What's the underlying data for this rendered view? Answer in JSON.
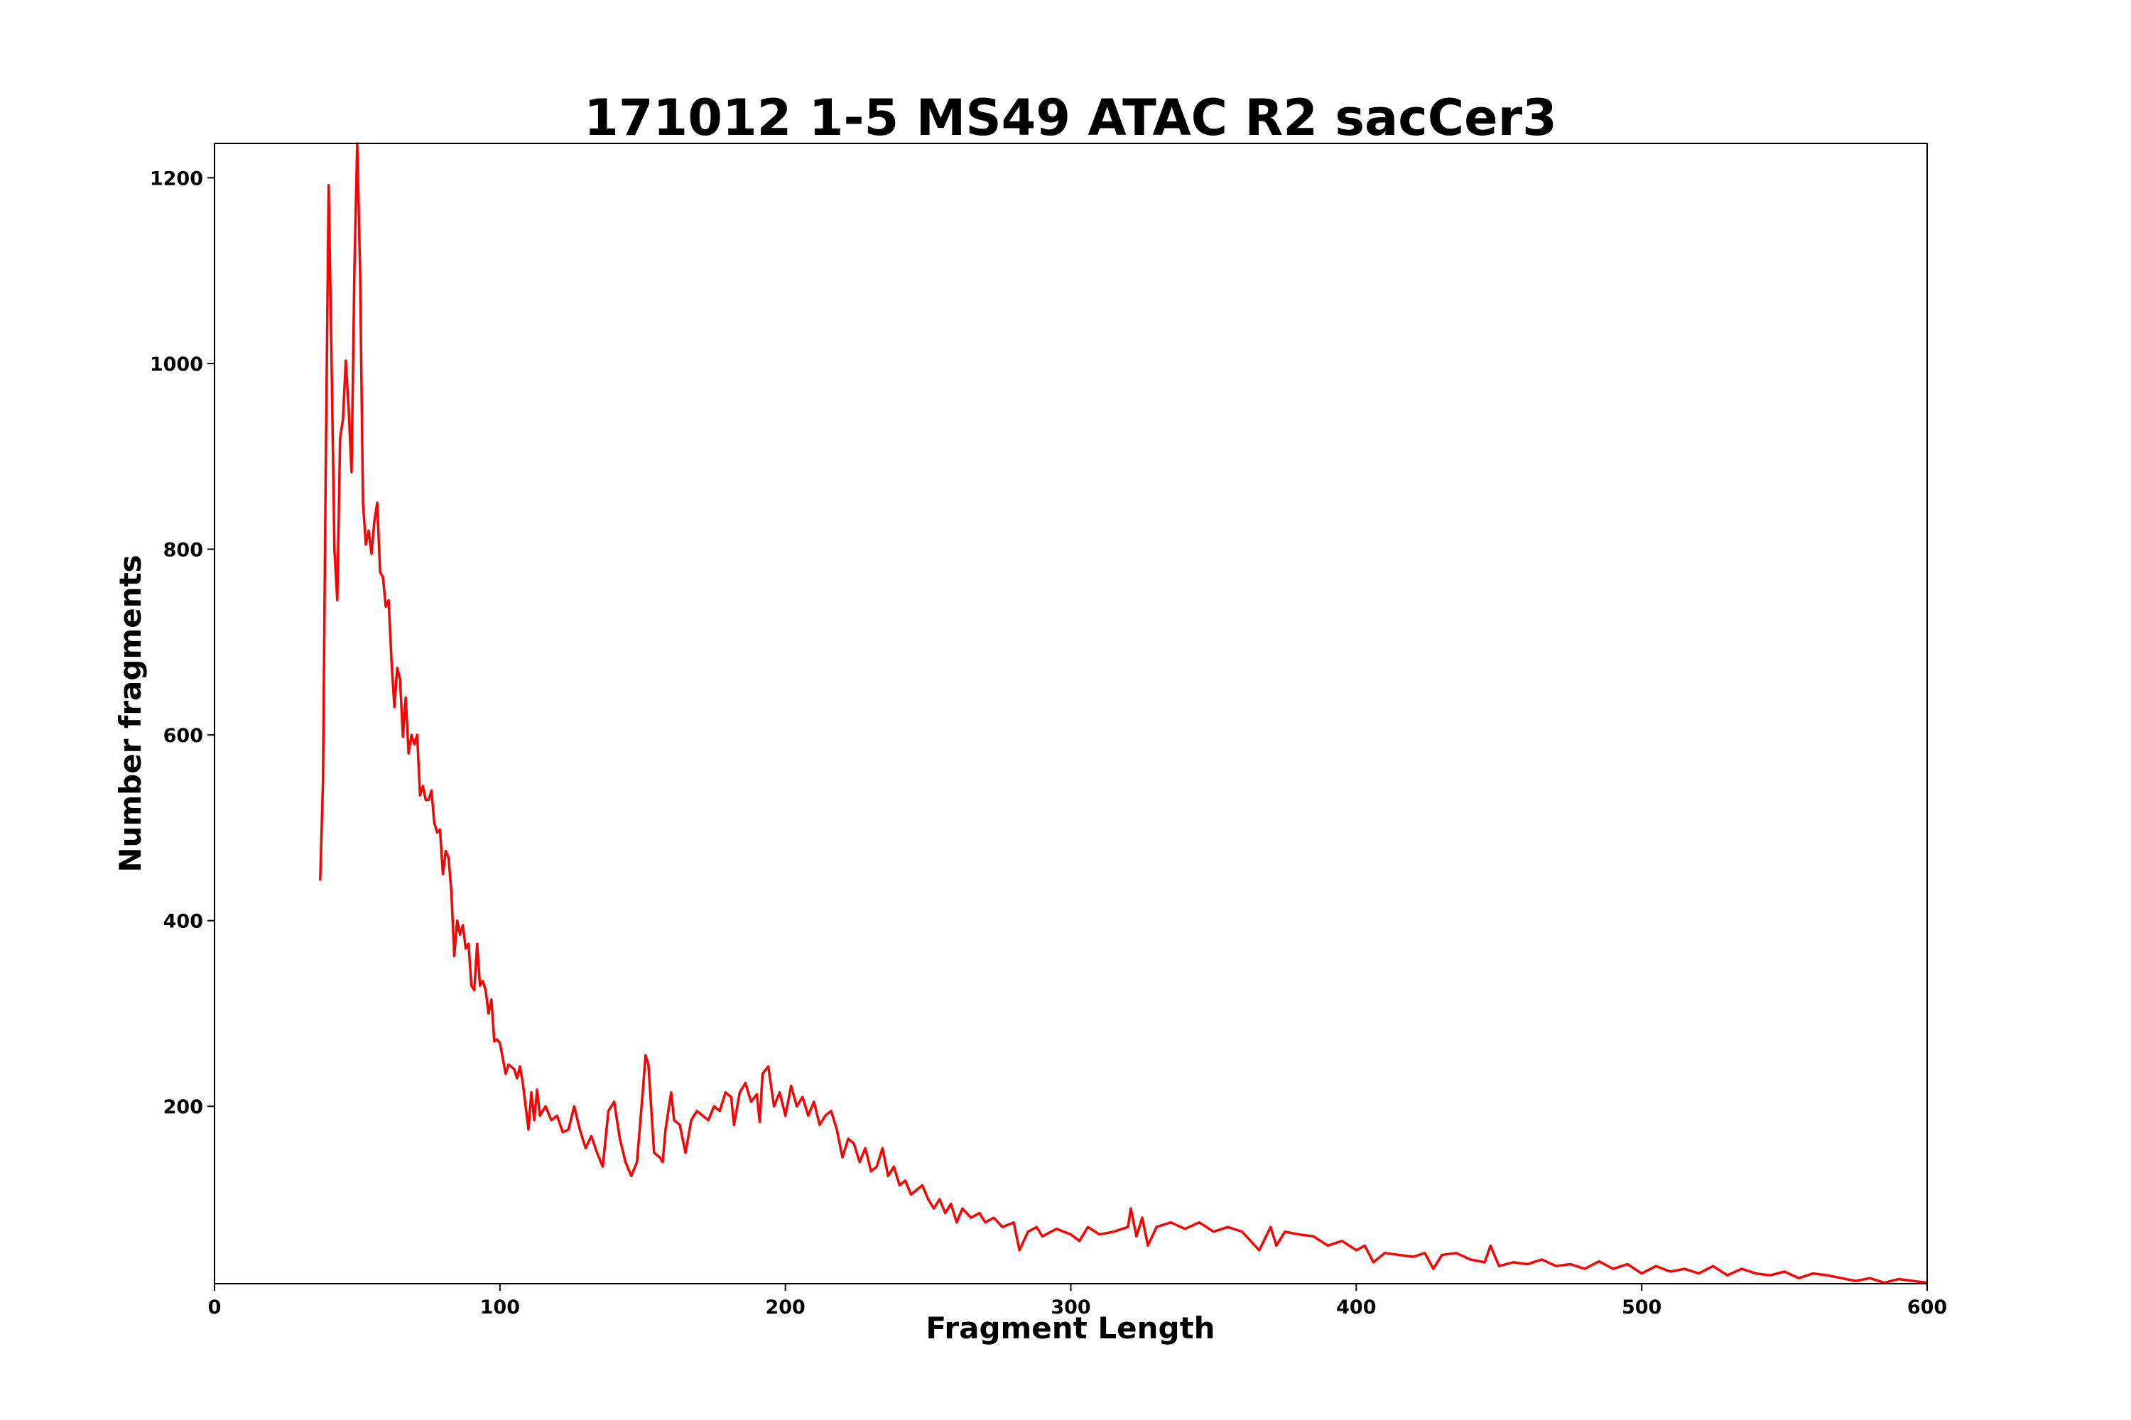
{
  "chart_data": {
    "type": "line",
    "title": "171012 1-5 MS49 ATAC R2 sacCer3",
    "xlabel": "Fragment Length",
    "ylabel": "Number fragments",
    "color": "#ff0000",
    "xlim": [
      0,
      600
    ],
    "ylim": [
      9,
      1237
    ],
    "xticks": [
      0,
      100,
      200,
      300,
      400,
      500,
      600
    ],
    "yticks": [
      200,
      400,
      600,
      800,
      1000,
      1200
    ],
    "x": [
      37,
      38,
      39,
      40,
      41,
      42,
      43,
      44,
      45,
      46,
      47,
      48,
      49,
      50,
      51,
      52,
      53,
      54,
      55,
      56,
      57,
      58,
      59,
      60,
      61,
      62,
      63,
      64,
      65,
      66,
      67,
      68,
      69,
      70,
      71,
      72,
      73,
      74,
      75,
      76,
      77,
      78,
      79,
      80,
      81,
      82,
      83,
      84,
      85,
      86,
      87,
      88,
      89,
      90,
      91,
      92,
      93,
      94,
      95,
      96,
      97,
      98,
      99,
      100,
      102,
      103,
      105,
      106,
      107,
      108,
      110,
      111,
      112,
      113,
      114,
      116,
      118,
      120,
      122,
      124,
      126,
      128,
      130,
      132,
      134,
      136,
      138,
      140,
      142,
      144,
      146,
      148,
      150,
      151,
      152,
      154,
      156,
      157,
      158,
      160,
      161,
      163,
      165,
      167,
      169,
      171,
      173,
      175,
      177,
      179,
      181,
      182,
      184,
      186,
      188,
      190,
      191,
      192,
      194,
      196,
      198,
      200,
      202,
      204,
      206,
      208,
      210,
      212,
      214,
      216,
      218,
      220,
      222,
      224,
      226,
      228,
      230,
      232,
      234,
      236,
      238,
      240,
      242,
      244,
      246,
      248,
      250,
      252,
      254,
      256,
      258,
      260,
      262,
      265,
      268,
      270,
      273,
      276,
      280,
      282,
      285,
      288,
      290,
      295,
      300,
      303,
      306,
      310,
      315,
      320,
      321,
      323,
      325,
      327,
      330,
      335,
      340,
      345,
      350,
      355,
      360,
      363,
      366,
      370,
      372,
      375,
      380,
      385,
      390,
      395,
      400,
      403,
      406,
      410,
      415,
      420,
      424,
      427,
      430,
      435,
      440,
      445,
      447,
      450,
      455,
      460,
      465,
      470,
      475,
      480,
      485,
      490,
      495,
      500,
      505,
      510,
      515,
      520,
      525,
      530,
      535,
      540,
      545,
      550,
      555,
      560,
      565,
      570,
      575,
      580,
      585,
      590,
      595,
      600
    ],
    "values": [
      443,
      550,
      900,
      1192,
      1000,
      800,
      745,
      920,
      940,
      1003,
      950,
      883,
      1100,
      1237,
      1100,
      850,
      805,
      820,
      795,
      830,
      850,
      775,
      770,
      738,
      745,
      680,
      630,
      672,
      660,
      598,
      640,
      580,
      600,
      590,
      600,
      535,
      545,
      530,
      530,
      540,
      505,
      495,
      498,
      450,
      475,
      468,
      430,
      362,
      400,
      385,
      395,
      370,
      375,
      330,
      325,
      375,
      330,
      335,
      325,
      300,
      315,
      270,
      272,
      268,
      235,
      245,
      240,
      230,
      243,
      225,
      175,
      215,
      185,
      218,
      190,
      200,
      185,
      190,
      172,
      175,
      200,
      175,
      155,
      168,
      150,
      135,
      195,
      205,
      165,
      140,
      125,
      140,
      215,
      255,
      245,
      150,
      145,
      140,
      175,
      215,
      185,
      180,
      150,
      185,
      195,
      190,
      185,
      200,
      195,
      215,
      210,
      180,
      215,
      225,
      205,
      213,
      183,
      235,
      243,
      200,
      215,
      190,
      222,
      200,
      210,
      190,
      205,
      180,
      190,
      195,
      175,
      145,
      165,
      160,
      140,
      155,
      130,
      135,
      155,
      125,
      135,
      115,
      120,
      105,
      110,
      115,
      100,
      90,
      100,
      85,
      95,
      75,
      90,
      80,
      85,
      75,
      80,
      70,
      75,
      45,
      65,
      70,
      60,
      68,
      62,
      55,
      70,
      62,
      65,
      70,
      90,
      60,
      80,
      50,
      70,
      75,
      68,
      75,
      65,
      70,
      65,
      55,
      45,
      70,
      50,
      65,
      62,
      60,
      50,
      55,
      45,
      50,
      32,
      42,
      40,
      38,
      42,
      25,
      40,
      42,
      35,
      32,
      50,
      28,
      32,
      30,
      35,
      28,
      30,
      25,
      33,
      25,
      30,
      20,
      28,
      22,
      25,
      20,
      28,
      18,
      25,
      20,
      18,
      22,
      15,
      20,
      18,
      15,
      12,
      15,
      10,
      14,
      12,
      10
    ]
  }
}
